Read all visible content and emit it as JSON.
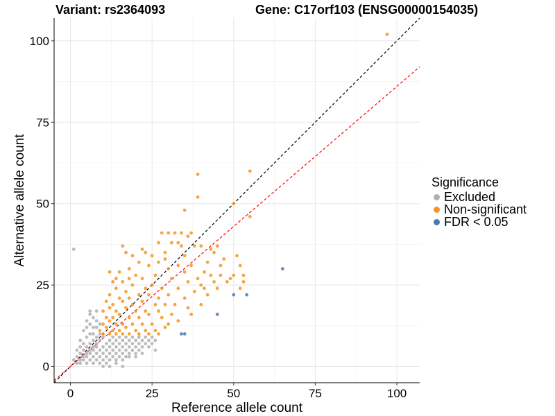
{
  "chart_data": {
    "type": "scatter",
    "title_left": "Variant: rs2364093",
    "title_right": "Gene: C17orf103 (ENSG00000154035)",
    "xlabel": "Reference allele count",
    "ylabel": "Alternative allele count",
    "xlim": [
      -5,
      107
    ],
    "ylim": [
      -5,
      107
    ],
    "xticks": [
      0,
      25,
      50,
      75,
      100
    ],
    "yticks": [
      0,
      25,
      50,
      75,
      100
    ],
    "grid": true,
    "reference_lines": [
      {
        "name": "identity",
        "slope": 1.0,
        "intercept": 0,
        "color": "#000000"
      },
      {
        "name": "fitted",
        "slope": 0.86,
        "intercept": 0,
        "color": "#ff0000"
      }
    ],
    "legend": {
      "title": "Significance",
      "position": "right",
      "entries": [
        {
          "label": "Excluded",
          "color": "#b0b0b0"
        },
        {
          "label": "Non-significant",
          "color": "#f7931e"
        },
        {
          "label": "FDR < 0.05",
          "color": "#4a7bb0"
        }
      ]
    },
    "series": [
      {
        "name": "Excluded",
        "color": "#b0b0b0",
        "points": [
          [
            1,
            36
          ],
          [
            1,
            2
          ],
          [
            2,
            1
          ],
          [
            2,
            3
          ],
          [
            3,
            2
          ],
          [
            3,
            4
          ],
          [
            3,
            1
          ],
          [
            4,
            3
          ],
          [
            4,
            5
          ],
          [
            4,
            2
          ],
          [
            5,
            1
          ],
          [
            5,
            4
          ],
          [
            5,
            6
          ],
          [
            5,
            3
          ],
          [
            6,
            2
          ],
          [
            6,
            5
          ],
          [
            6,
            7
          ],
          [
            6,
            4
          ],
          [
            7,
            3
          ],
          [
            7,
            6
          ],
          [
            7,
            8
          ],
          [
            7,
            1
          ],
          [
            7,
            5
          ],
          [
            8,
            2
          ],
          [
            8,
            4
          ],
          [
            8,
            7
          ],
          [
            8,
            9
          ],
          [
            8,
            6
          ],
          [
            9,
            3
          ],
          [
            9,
            5
          ],
          [
            9,
            8
          ],
          [
            9,
            10
          ],
          [
            9,
            1
          ],
          [
            10,
            2
          ],
          [
            10,
            4
          ],
          [
            10,
            6
          ],
          [
            10,
            9
          ],
          [
            10,
            0
          ],
          [
            11,
            3
          ],
          [
            11,
            5
          ],
          [
            11,
            7
          ],
          [
            11,
            1
          ],
          [
            12,
            2
          ],
          [
            12,
            4
          ],
          [
            12,
            6
          ],
          [
            12,
            8
          ],
          [
            13,
            3
          ],
          [
            13,
            5
          ],
          [
            13,
            7
          ],
          [
            13,
            9
          ],
          [
            14,
            2
          ],
          [
            14,
            4
          ],
          [
            14,
            6
          ],
          [
            14,
            8
          ],
          [
            15,
            3
          ],
          [
            15,
            5
          ],
          [
            15,
            7
          ],
          [
            15,
            9
          ],
          [
            16,
            2
          ],
          [
            16,
            4
          ],
          [
            16,
            6
          ],
          [
            16,
            8
          ],
          [
            17,
            3
          ],
          [
            17,
            5
          ],
          [
            17,
            7
          ],
          [
            17,
            9
          ],
          [
            18,
            4
          ],
          [
            18,
            6
          ],
          [
            18,
            8
          ],
          [
            19,
            5
          ],
          [
            19,
            7
          ],
          [
            19,
            9
          ],
          [
            20,
            4
          ],
          [
            20,
            6
          ],
          [
            20,
            8
          ],
          [
            21,
            5
          ],
          [
            21,
            7
          ],
          [
            21,
            9
          ],
          [
            22,
            6
          ],
          [
            22,
            8
          ],
          [
            23,
            7
          ],
          [
            23,
            9
          ],
          [
            24,
            6
          ],
          [
            24,
            8
          ],
          [
            25,
            7
          ],
          [
            25,
            9
          ],
          [
            26,
            8
          ],
          [
            26,
            5
          ],
          [
            6,
            17
          ],
          [
            6,
            16
          ],
          [
            7,
            15
          ],
          [
            8,
            17
          ],
          [
            8,
            14
          ],
          [
            5,
            12
          ],
          [
            4,
            11
          ],
          [
            7,
            12
          ],
          [
            3,
            8
          ],
          [
            6,
            10
          ],
          [
            5,
            9
          ],
          [
            8,
            12
          ],
          [
            9,
            13
          ],
          [
            4,
            7
          ],
          [
            3,
            6
          ],
          [
            2,
            5
          ],
          [
            7,
            10
          ],
          [
            6,
            13
          ],
          [
            5,
            14
          ],
          [
            16,
            0
          ],
          [
            14,
            1
          ],
          [
            12,
            0
          ],
          [
            18,
            3
          ],
          [
            20,
            3
          ],
          [
            22,
            4
          ]
        ]
      },
      {
        "name": "Non-significant",
        "color": "#f7931e",
        "points": [
          [
            97,
            102
          ],
          [
            55,
            60
          ],
          [
            39,
            59
          ],
          [
            39,
            52
          ],
          [
            35,
            48
          ],
          [
            50,
            50
          ],
          [
            55,
            46
          ],
          [
            37,
            41
          ],
          [
            34,
            41
          ],
          [
            32,
            41
          ],
          [
            30,
            41
          ],
          [
            28,
            41
          ],
          [
            36,
            40
          ],
          [
            33,
            38
          ],
          [
            31,
            38
          ],
          [
            27,
            38
          ],
          [
            38,
            37
          ],
          [
            16,
            37
          ],
          [
            34,
            37
          ],
          [
            40,
            37
          ],
          [
            45,
            37
          ],
          [
            22,
            36
          ],
          [
            43,
            36
          ],
          [
            17,
            35
          ],
          [
            44,
            35
          ],
          [
            23,
            35
          ],
          [
            29,
            35
          ],
          [
            51,
            34
          ],
          [
            47,
            33
          ],
          [
            19,
            34
          ],
          [
            25,
            34
          ],
          [
            35,
            34
          ],
          [
            52,
            31
          ],
          [
            42,
            32
          ],
          [
            29,
            33
          ],
          [
            21,
            32
          ],
          [
            27,
            32
          ],
          [
            33,
            31
          ],
          [
            37,
            31
          ],
          [
            18,
            30
          ],
          [
            24,
            31
          ],
          [
            30,
            30
          ],
          [
            41,
            29
          ],
          [
            46,
            28
          ],
          [
            50,
            28
          ],
          [
            53,
            28
          ],
          [
            49,
            27
          ],
          [
            53,
            26
          ],
          [
            52,
            24
          ],
          [
            12,
            29
          ],
          [
            15,
            29
          ],
          [
            13,
            26
          ],
          [
            14,
            27
          ],
          [
            16,
            26
          ],
          [
            18,
            27
          ],
          [
            20,
            28
          ],
          [
            22,
            27
          ],
          [
            26,
            28
          ],
          [
            31,
            27
          ],
          [
            36,
            26
          ],
          [
            40,
            25
          ],
          [
            44,
            26
          ],
          [
            14,
            24
          ],
          [
            17,
            23
          ],
          [
            19,
            25
          ],
          [
            23,
            24
          ],
          [
            25,
            25
          ],
          [
            28,
            24
          ],
          [
            33,
            24
          ],
          [
            38,
            23
          ],
          [
            42,
            22
          ],
          [
            12,
            22
          ],
          [
            15,
            21
          ],
          [
            18,
            21
          ],
          [
            21,
            22
          ],
          [
            24,
            22
          ],
          [
            27,
            21
          ],
          [
            30,
            22
          ],
          [
            35,
            21
          ],
          [
            11,
            20
          ],
          [
            13,
            19
          ],
          [
            16,
            20
          ],
          [
            19,
            19
          ],
          [
            22,
            20
          ],
          [
            26,
            19
          ],
          [
            29,
            19
          ],
          [
            32,
            19
          ],
          [
            36,
            18
          ],
          [
            10,
            17
          ],
          [
            12,
            18
          ],
          [
            14,
            17
          ],
          [
            17,
            18
          ],
          [
            20,
            17
          ],
          [
            23,
            17
          ],
          [
            27,
            17
          ],
          [
            31,
            16
          ],
          [
            11,
            15
          ],
          [
            13,
            15
          ],
          [
            15,
            16
          ],
          [
            18,
            15
          ],
          [
            21,
            15
          ],
          [
            24,
            16
          ],
          [
            28,
            15
          ],
          [
            10,
            13
          ],
          [
            12,
            14
          ],
          [
            14,
            13
          ],
          [
            16,
            13
          ],
          [
            19,
            13
          ],
          [
            22,
            13
          ],
          [
            25,
            13
          ],
          [
            30,
            13
          ],
          [
            9,
            11
          ],
          [
            11,
            12
          ],
          [
            13,
            11
          ],
          [
            15,
            11
          ],
          [
            17,
            12
          ],
          [
            20,
            11
          ],
          [
            23,
            11
          ],
          [
            26,
            11
          ],
          [
            10,
            10
          ],
          [
            12,
            10
          ],
          [
            14,
            10
          ],
          [
            16,
            10
          ],
          [
            18,
            10
          ],
          [
            21,
            10
          ],
          [
            24,
            10
          ],
          [
            27,
            10
          ],
          [
            29,
            12
          ],
          [
            33,
            14
          ],
          [
            37,
            16
          ],
          [
            40,
            19
          ],
          [
            45,
            24
          ],
          [
            48,
            26
          ],
          [
            41,
            24
          ],
          [
            43,
            28
          ],
          [
            46,
            31
          ],
          [
            35,
            29
          ],
          [
            39,
            27
          ]
        ]
      },
      {
        "name": "FDR < 0.05",
        "color": "#4a7bb0",
        "points": [
          [
            65,
            30
          ],
          [
            50,
            22
          ],
          [
            54,
            22
          ],
          [
            45,
            16
          ],
          [
            34,
            10
          ],
          [
            35,
            10
          ]
        ]
      }
    ]
  }
}
